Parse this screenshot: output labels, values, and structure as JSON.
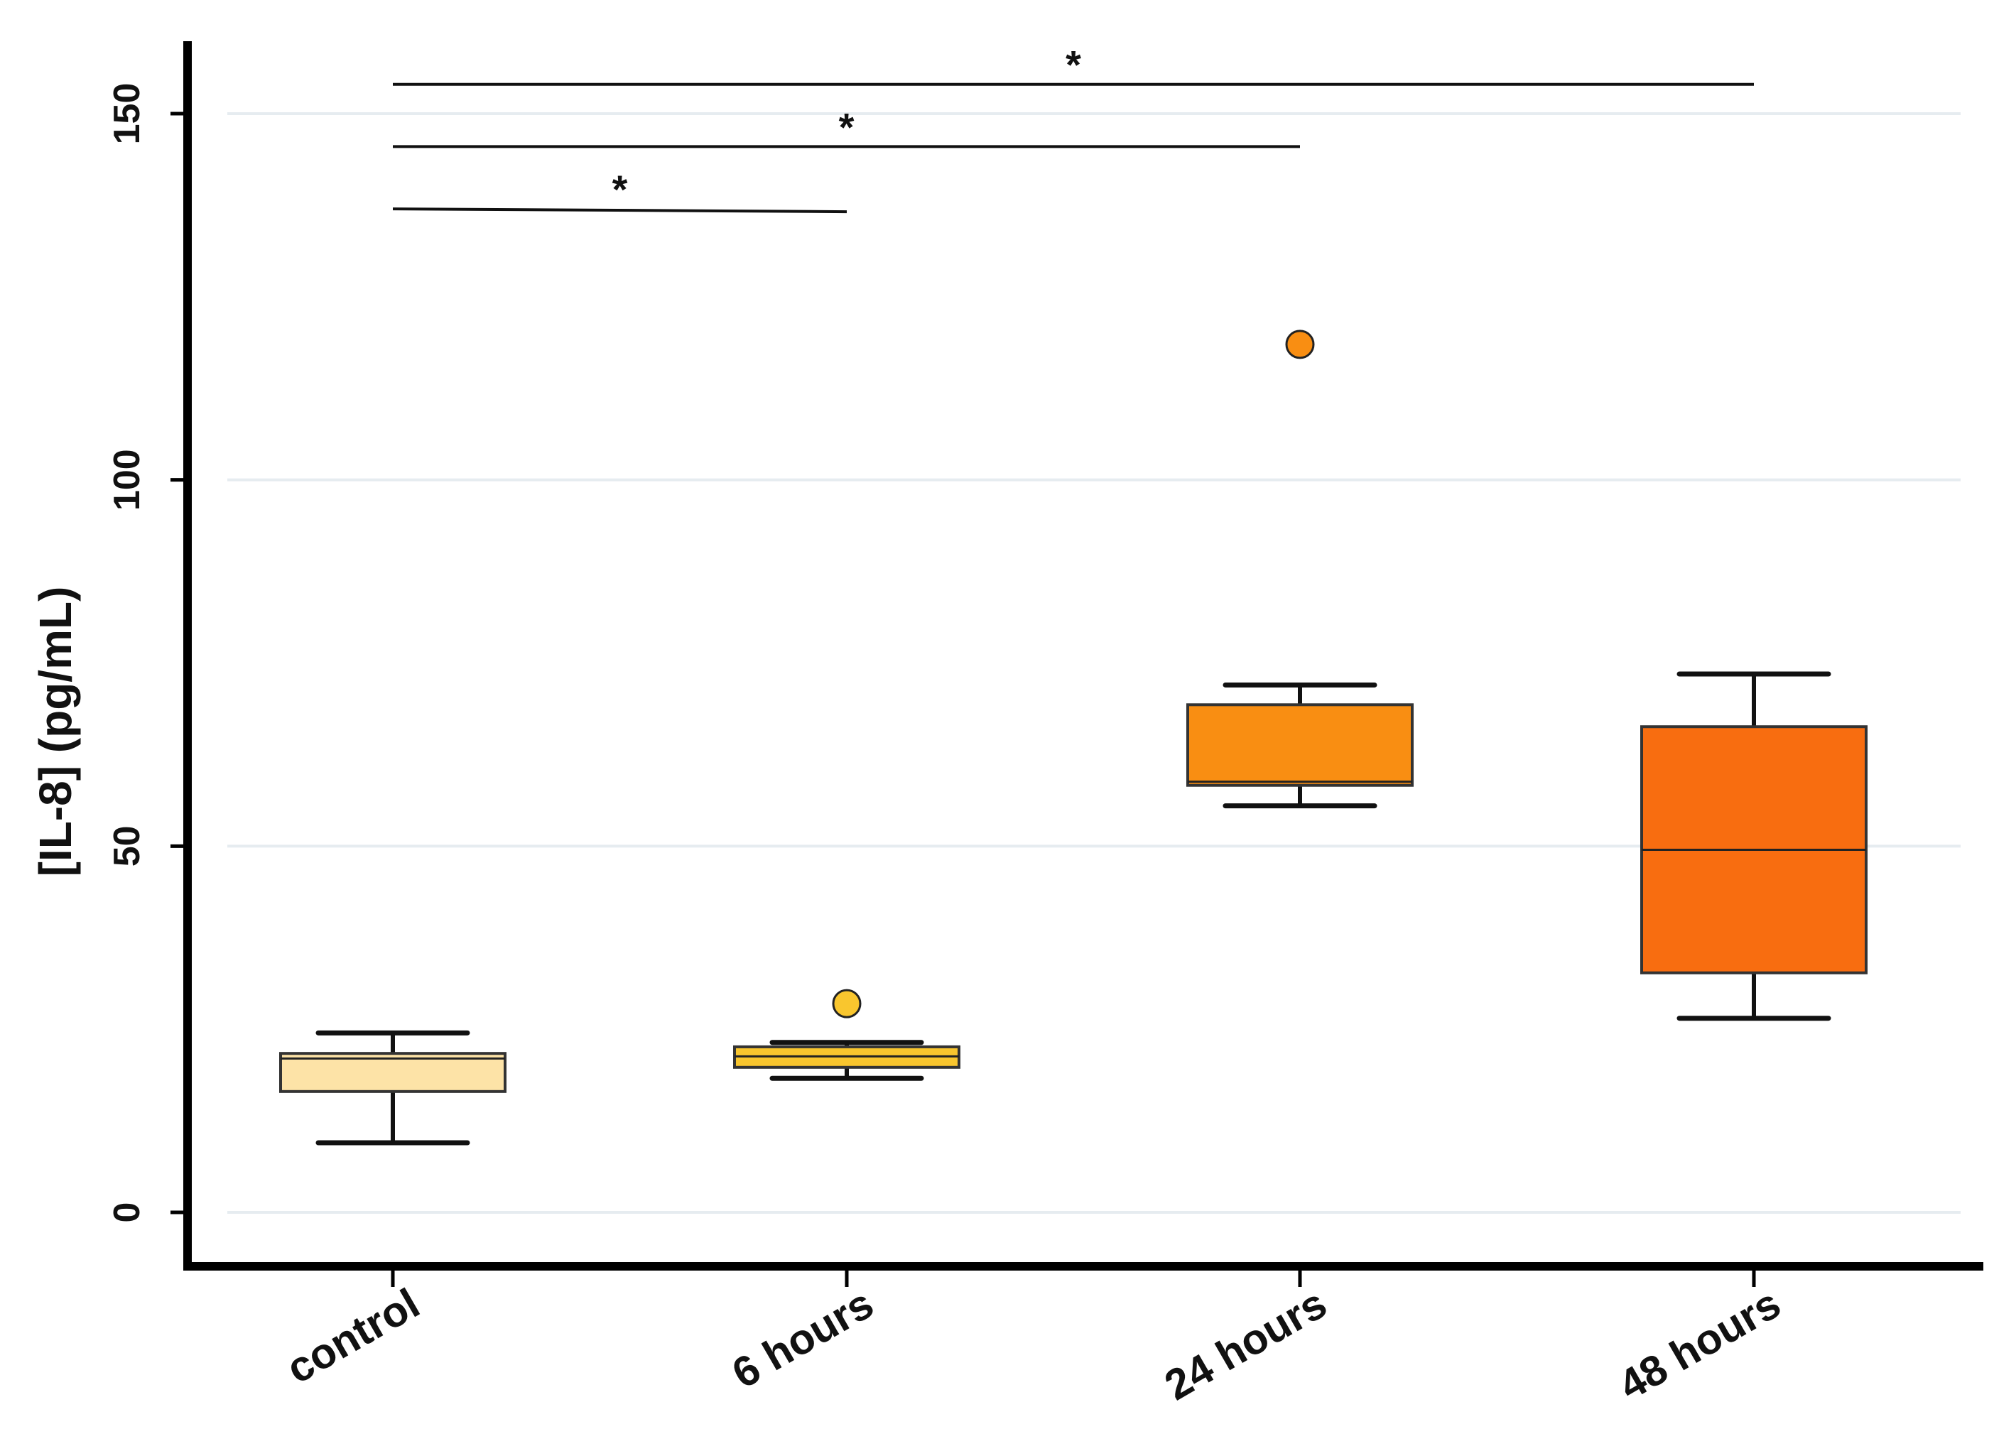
{
  "chart_data": {
    "type": "box",
    "title": "",
    "xlabel": "",
    "ylabel": "[IL-8] (pg/mL)",
    "ylim": [
      -8,
      160
    ],
    "yticks": [
      0,
      50,
      100,
      150
    ],
    "ytick_labels": [
      "0",
      "50",
      "100",
      "150"
    ],
    "grid": true,
    "categories": [
      "control",
      "6 hours",
      "24 hours",
      "48 hours"
    ],
    "boxes": [
      {
        "name": "control",
        "whisker_low": 9.5,
        "q1": 16.5,
        "median": 21,
        "q3": 21.7,
        "whisker_high": 24.5,
        "outliers": [],
        "color": "#FDE3A7"
      },
      {
        "name": "6 hours",
        "whisker_low": 18.3,
        "q1": 19.8,
        "median": 21.3,
        "q3": 22.6,
        "whisker_high": 23.2,
        "outliers": [
          28.5
        ],
        "color": "#F9C62E"
      },
      {
        "name": "24 hours",
        "whisker_low": 55.5,
        "q1": 58.3,
        "median": 58.8,
        "q3": 69.3,
        "whisker_high": 72,
        "outliers": [
          118.5
        ],
        "color": "#F98E12"
      },
      {
        "name": "48 hours",
        "whisker_low": 26.5,
        "q1": 32.7,
        "median": 49.5,
        "q3": 66.3,
        "whisker_high": 73.5,
        "outliers": [],
        "color": "#F86D10"
      }
    ],
    "significance": [
      {
        "from": "control",
        "to": "6 hours",
        "y": 137,
        "label": "*"
      },
      {
        "from": "control",
        "to": "24 hours",
        "y": 145.5,
        "label": "*"
      },
      {
        "from": "control",
        "to": "48 hours",
        "y": 154,
        "label": "*"
      }
    ]
  }
}
